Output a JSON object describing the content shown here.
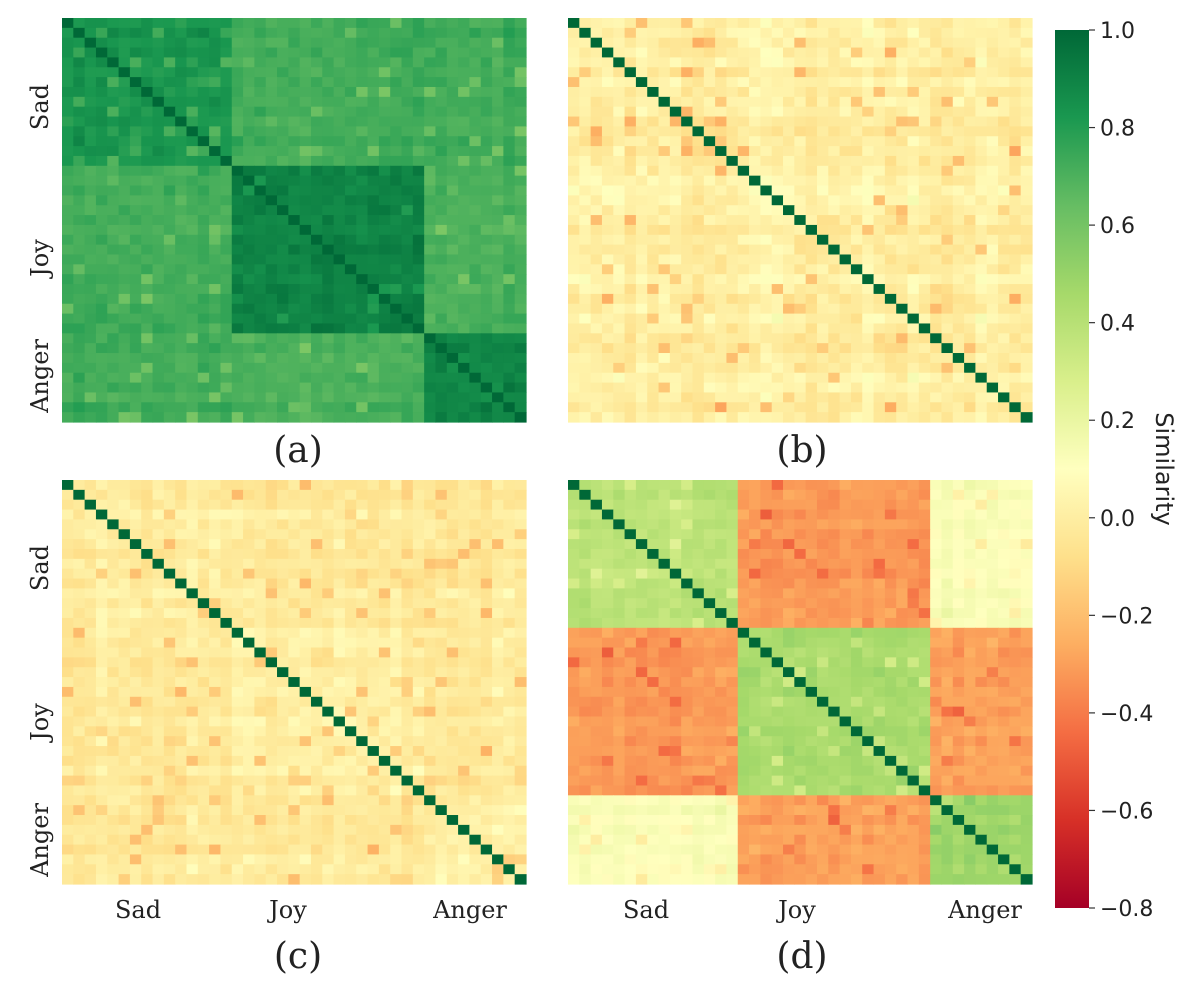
{
  "chart_data": {
    "type": "heatmap",
    "title": "",
    "colorbar": {
      "label": "Similarity",
      "min": -0.8,
      "max": 1.0,
      "ticks": [
        "1.0",
        "0.8",
        "0.6",
        "0.4",
        "0.2",
        "0.0",
        "−0.2",
        "−0.4",
        "−0.6",
        "−0.8"
      ],
      "tick_values": [
        1.0,
        0.8,
        0.6,
        0.4,
        0.2,
        0.0,
        -0.2,
        -0.4,
        -0.6,
        -0.8
      ],
      "colormap": "RdYlGn",
      "stops": [
        "#a50026",
        "#d73027",
        "#f46d43",
        "#fdae61",
        "#fee08b",
        "#ffffbf",
        "#d9ef8b",
        "#a6d96a",
        "#66bd63",
        "#1a9850",
        "#006837"
      ]
    },
    "categories": [
      "Sad",
      "Joy",
      "Anger"
    ],
    "block_sizes": [
      15,
      17,
      9
    ],
    "panels": [
      {
        "label": "(a)",
        "y_ticks": [
          "Sad",
          "Joy",
          "Anger"
        ],
        "x_ticks": [],
        "diagonal": 1.0,
        "block_means": [
          [
            0.82,
            0.72,
            0.72
          ],
          [
            0.72,
            0.9,
            0.7
          ],
          [
            0.72,
            0.7,
            0.88
          ]
        ],
        "noise": 0.05
      },
      {
        "label": "(b)",
        "y_ticks": [],
        "x_ticks": [],
        "diagonal": 1.0,
        "block_means": [
          [
            0.0,
            0.0,
            0.0
          ],
          [
            0.0,
            0.0,
            0.0
          ],
          [
            0.0,
            0.0,
            0.0
          ]
        ],
        "noise": 0.08
      },
      {
        "label": "(c)",
        "y_ticks": [
          "Sad",
          "Joy",
          "Anger"
        ],
        "x_ticks": [
          "Sad",
          "Joy",
          "Anger"
        ],
        "diagonal": 1.0,
        "block_means": [
          [
            0.0,
            -0.02,
            -0.02
          ],
          [
            -0.02,
            0.02,
            -0.02
          ],
          [
            -0.02,
            -0.02,
            0.02
          ]
        ],
        "noise": 0.07
      },
      {
        "label": "(d)",
        "y_ticks": [],
        "x_ticks": [
          "Sad",
          "Joy",
          "Anger"
        ],
        "diagonal": 1.0,
        "block_means": [
          [
            0.38,
            -0.32,
            0.12
          ],
          [
            -0.32,
            0.44,
            -0.3
          ],
          [
            0.12,
            -0.3,
            0.48
          ]
        ],
        "noise": 0.05
      }
    ]
  }
}
